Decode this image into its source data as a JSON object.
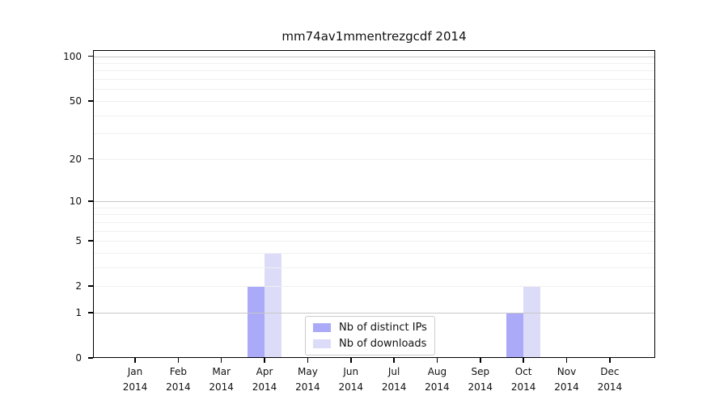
{
  "title": "mm74av1mmentrezgcdf 2014",
  "colors": {
    "background": "#ffffff",
    "spine": "#000000",
    "grid_minor": "#f0f0f0",
    "grid_decade": "#c8c8c8",
    "text": "#111111",
    "legend_border": "#cccccc"
  },
  "chart_data": {
    "type": "bar",
    "title": "mm74av1mmentrezgcdf 2014",
    "months": [
      "Jan",
      "Feb",
      "Mar",
      "Apr",
      "May",
      "Jun",
      "Jul",
      "Aug",
      "Sep",
      "Oct",
      "Nov",
      "Dec"
    ],
    "year": "2014",
    "categories": [
      "Jan 2014",
      "Feb 2014",
      "Mar 2014",
      "Apr 2014",
      "May 2014",
      "Jun 2014",
      "Jul 2014",
      "Aug 2014",
      "Sep 2014",
      "Oct 2014",
      "Nov 2014",
      "Dec 2014"
    ],
    "series": [
      {
        "name": "Nb of distinct IPs",
        "color": "#aaaaf8",
        "values": [
          0,
          0,
          0,
          2,
          0,
          0,
          0,
          0,
          0,
          1,
          0,
          0
        ]
      },
      {
        "name": "Nb of downloads",
        "color": "#dcdcf8",
        "values": [
          0,
          0,
          0,
          4,
          0,
          0,
          0,
          0,
          0,
          2,
          0,
          0
        ]
      }
    ],
    "y_scale": "log1p",
    "y_ticks": [
      0,
      1,
      2,
      5,
      10,
      20,
      50,
      100
    ],
    "y_max": 110,
    "minor_gridlines": [
      2,
      3,
      4,
      5,
      6,
      7,
      8,
      9,
      20,
      30,
      40,
      50,
      60,
      70,
      80,
      90
    ],
    "decade_gridlines": [
      1,
      10,
      100
    ],
    "xlabel": "",
    "ylabel": "",
    "grid": true,
    "legend_position": "lower center"
  }
}
